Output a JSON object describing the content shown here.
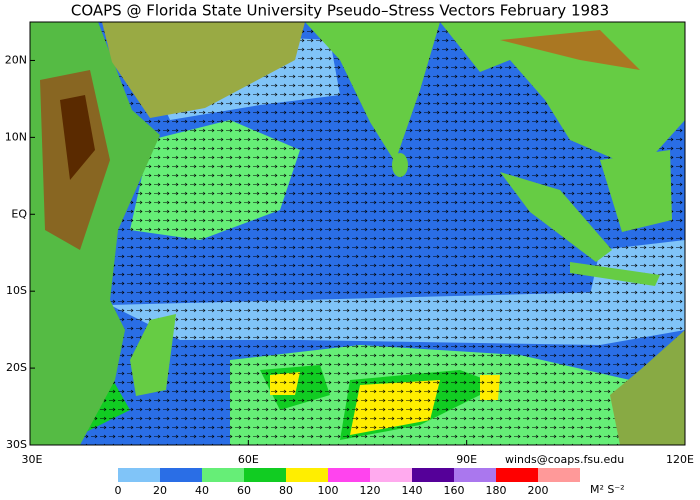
{
  "map": {
    "title": "COAPS @ Florida State University Pseudo–Stress Vectors  February 1983",
    "lon_lim": [
      30,
      120
    ],
    "lat_lim": [
      25,
      -30
    ],
    "lon_ticks": [
      {
        "value": 30,
        "label": "30E"
      },
      {
        "value": 60,
        "label": "60E"
      },
      {
        "value": 90,
        "label": "90E"
      },
      {
        "value": 120,
        "label": "120E"
      }
    ],
    "lat_ticks": [
      {
        "value": 20,
        "label": "20N"
      },
      {
        "value": 10,
        "label": "10N"
      },
      {
        "value": 0,
        "label": "EQ"
      },
      {
        "value": -10,
        "label": "10S"
      },
      {
        "value": -20,
        "label": "20S"
      },
      {
        "value": -30,
        "label": "30S"
      }
    ],
    "credit": "winds@coaps.fsu.edu",
    "colorbar": {
      "colors": [
        "#80c4f8",
        "#2a6ee6",
        "#66ee77",
        "#11cc22",
        "#ffee00",
        "#ff44ee",
        "#ffaaee",
        "#550099",
        "#aa77ee",
        "#ff0000",
        "#ff9999"
      ],
      "ticks": [
        0,
        20,
        40,
        60,
        80,
        100,
        120,
        140,
        160,
        180,
        200
      ],
      "unit": "M² S⁻²"
    }
  }
}
